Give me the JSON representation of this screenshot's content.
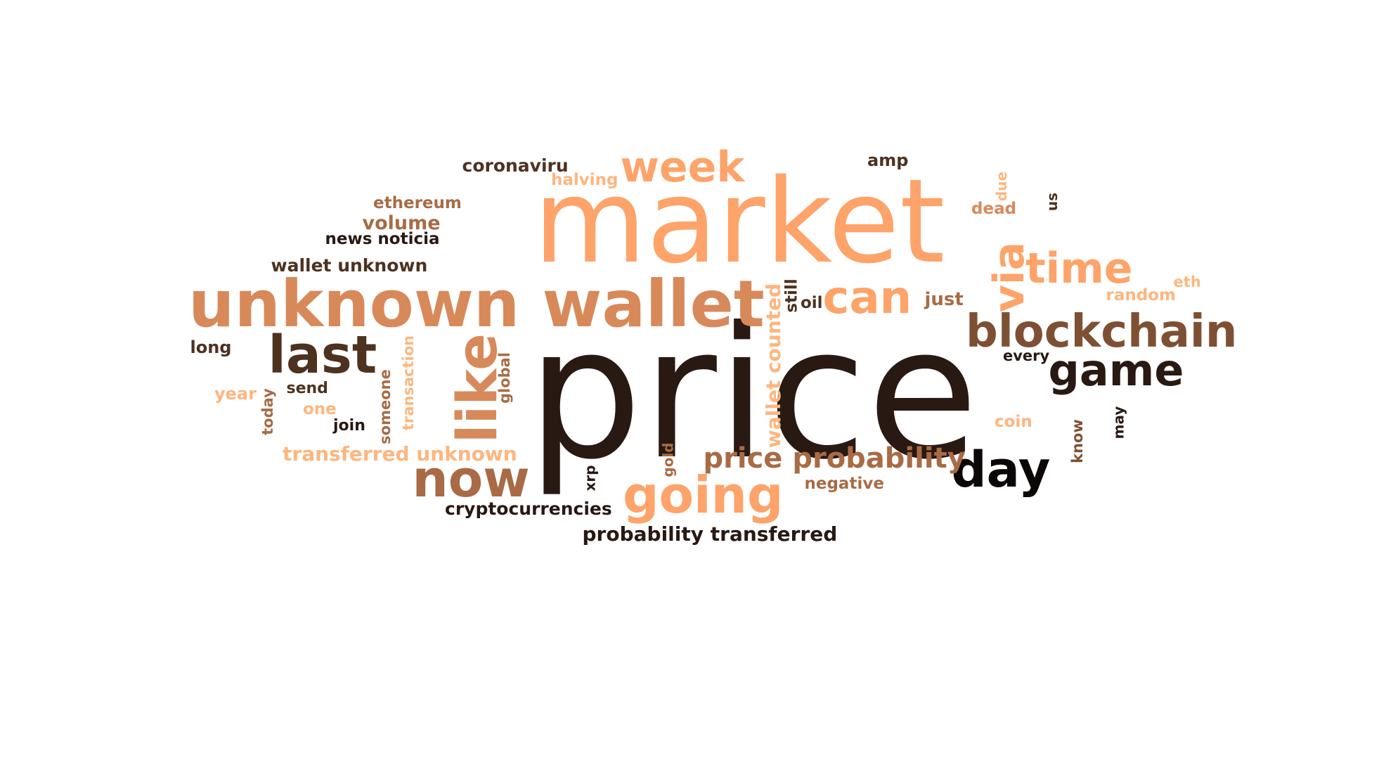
{
  "palette": {
    "peach": "#fea369",
    "light_peach": "#fdb67f",
    "tan": "#d8895a",
    "brown": "#a86b45",
    "mid_brown": "#7e5033",
    "dark_brown": "#4d3220",
    "near_black": "#281912",
    "black": "#0a0706"
  },
  "words": [
    {
      "text": "price",
      "color": "near_black",
      "size": 258,
      "rotated": false
    },
    {
      "text": "market",
      "color": "peach",
      "size": 165,
      "rotated": false
    },
    {
      "text": "unknown wallet",
      "color": "tan",
      "size": 92,
      "rotated": false
    },
    {
      "text": "like",
      "color": "tan",
      "size": 78,
      "rotated": true
    },
    {
      "text": "last",
      "color": "dark_brown",
      "size": 74,
      "rotated": false
    },
    {
      "text": "going",
      "color": "peach",
      "size": 72,
      "rotated": false
    },
    {
      "text": "now",
      "color": "brown",
      "size": 72,
      "rotated": false
    },
    {
      "text": "day",
      "color": "black",
      "size": 70,
      "rotated": false
    },
    {
      "text": "blockchain",
      "color": "mid_brown",
      "size": 64,
      "rotated": false
    },
    {
      "text": "can",
      "color": "peach",
      "size": 64,
      "rotated": false
    },
    {
      "text": "game",
      "color": "near_black",
      "size": 62,
      "rotated": false
    },
    {
      "text": "time",
      "color": "peach",
      "size": 60,
      "rotated": false
    },
    {
      "text": "week",
      "color": "peach",
      "size": 60,
      "rotated": false
    },
    {
      "text": "via",
      "color": "peach",
      "size": 60,
      "rotated": true
    },
    {
      "text": "price probability",
      "color": "brown",
      "size": 40,
      "rotated": false
    },
    {
      "text": "wallet counted",
      "color": "light_peach",
      "size": 28,
      "rotated": true
    },
    {
      "text": "transferred unknown",
      "color": "light_peach",
      "size": 28,
      "rotated": false
    },
    {
      "text": "probability transferred",
      "color": "near_black",
      "size": 28,
      "rotated": false
    },
    {
      "text": "coronaviru",
      "color": "dark_brown",
      "size": 25,
      "rotated": false
    },
    {
      "text": "wallet unknown",
      "color": "dark_brown",
      "size": 25,
      "rotated": false
    },
    {
      "text": "cryptocurrencies",
      "color": "near_black",
      "size": 25,
      "rotated": false
    },
    {
      "text": "volume",
      "color": "brown",
      "size": 27,
      "rotated": false
    },
    {
      "text": "ethereum",
      "color": "brown",
      "size": 23,
      "rotated": false
    },
    {
      "text": "halving",
      "color": "light_peach",
      "size": 23,
      "rotated": false
    },
    {
      "text": "news noticia",
      "color": "near_black",
      "size": 23,
      "rotated": false
    },
    {
      "text": "amp",
      "color": "dark_brown",
      "size": 24,
      "rotated": false
    },
    {
      "text": "just",
      "color": "brown",
      "size": 26,
      "rotated": false
    },
    {
      "text": "oil",
      "color": "dark_brown",
      "size": 23,
      "rotated": false
    },
    {
      "text": "still",
      "color": "dark_brown",
      "size": 23,
      "rotated": true
    },
    {
      "text": "dead",
      "color": "tan",
      "size": 23,
      "rotated": false
    },
    {
      "text": "due",
      "color": "light_peach",
      "size": 20,
      "rotated": true
    },
    {
      "text": "us",
      "color": "dark_brown",
      "size": 20,
      "rotated": true
    },
    {
      "text": "random",
      "color": "light_peach",
      "size": 23,
      "rotated": false
    },
    {
      "text": "eth",
      "color": "light_peach",
      "size": 21,
      "rotated": false
    },
    {
      "text": "every",
      "color": "near_black",
      "size": 21,
      "rotated": false
    },
    {
      "text": "long",
      "color": "dark_brown",
      "size": 24,
      "rotated": false
    },
    {
      "text": "year",
      "color": "light_peach",
      "size": 24,
      "rotated": false
    },
    {
      "text": "send",
      "color": "dark_brown",
      "size": 22,
      "rotated": false
    },
    {
      "text": "one",
      "color": "light_peach",
      "size": 23,
      "rotated": false
    },
    {
      "text": "join",
      "color": "near_black",
      "size": 22,
      "rotated": false
    },
    {
      "text": "today",
      "color": "brown",
      "size": 21,
      "rotated": true
    },
    {
      "text": "someone",
      "color": "brown",
      "size": 21,
      "rotated": true
    },
    {
      "text": "transaction",
      "color": "light_peach",
      "size": 21,
      "rotated": true
    },
    {
      "text": "global",
      "color": "brown",
      "size": 21,
      "rotated": true
    },
    {
      "text": "gold",
      "color": "brown",
      "size": 20,
      "rotated": true
    },
    {
      "text": "xrp",
      "color": "near_black",
      "size": 20,
      "rotated": true
    },
    {
      "text": "negative",
      "color": "brown",
      "size": 23,
      "rotated": false
    },
    {
      "text": "coin",
      "color": "light_peach",
      "size": 23,
      "rotated": false
    },
    {
      "text": "know",
      "color": "mid_brown",
      "size": 21,
      "rotated": true
    },
    {
      "text": "may",
      "color": "near_black",
      "size": 20,
      "rotated": true
    }
  ]
}
